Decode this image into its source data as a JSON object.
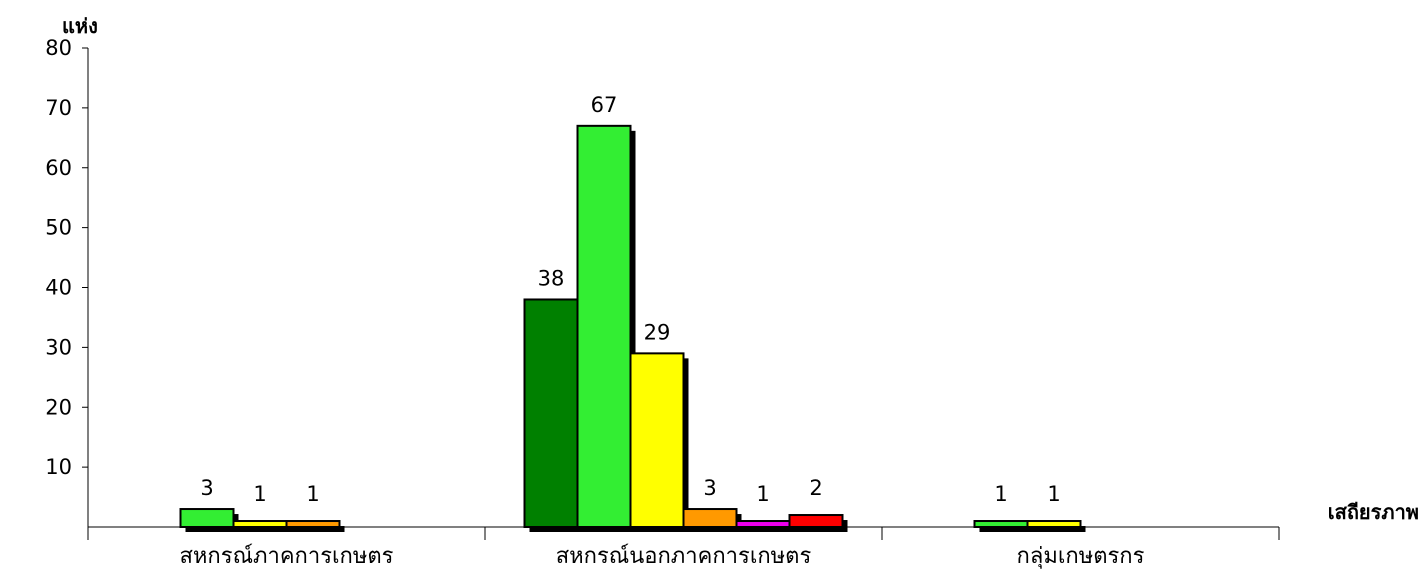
{
  "chart_data": {
    "type": "bar",
    "ylabel": "แห่ง",
    "xlabel": "เสถียรภาพ",
    "ylim": [
      0,
      80
    ],
    "yticks": [
      10,
      20,
      30,
      40,
      50,
      60,
      70,
      80
    ],
    "categories": [
      "สหกรณ์ภาคการเกษตร",
      "สหกรณ์นอกภาคการเกษตร",
      "กลุ่มเกษตรกร"
    ],
    "series_colors": [
      "#008000",
      "#33ee33",
      "#ffff00",
      "#ff9900",
      "#ee00ee",
      "#ff0000"
    ],
    "bars": [
      {
        "category": 0,
        "series": 1,
        "value": 3
      },
      {
        "category": 0,
        "series": 2,
        "value": 1
      },
      {
        "category": 0,
        "series": 3,
        "value": 1
      },
      {
        "category": 1,
        "series": 0,
        "value": 38
      },
      {
        "category": 1,
        "series": 1,
        "value": 67
      },
      {
        "category": 1,
        "series": 2,
        "value": 29
      },
      {
        "category": 1,
        "series": 3,
        "value": 3
      },
      {
        "category": 1,
        "series": 4,
        "value": 1
      },
      {
        "category": 1,
        "series": 5,
        "value": 2
      },
      {
        "category": 2,
        "series": 1,
        "value": 1
      },
      {
        "category": 2,
        "series": 2,
        "value": 1
      }
    ],
    "grid": false,
    "legend": "none"
  }
}
